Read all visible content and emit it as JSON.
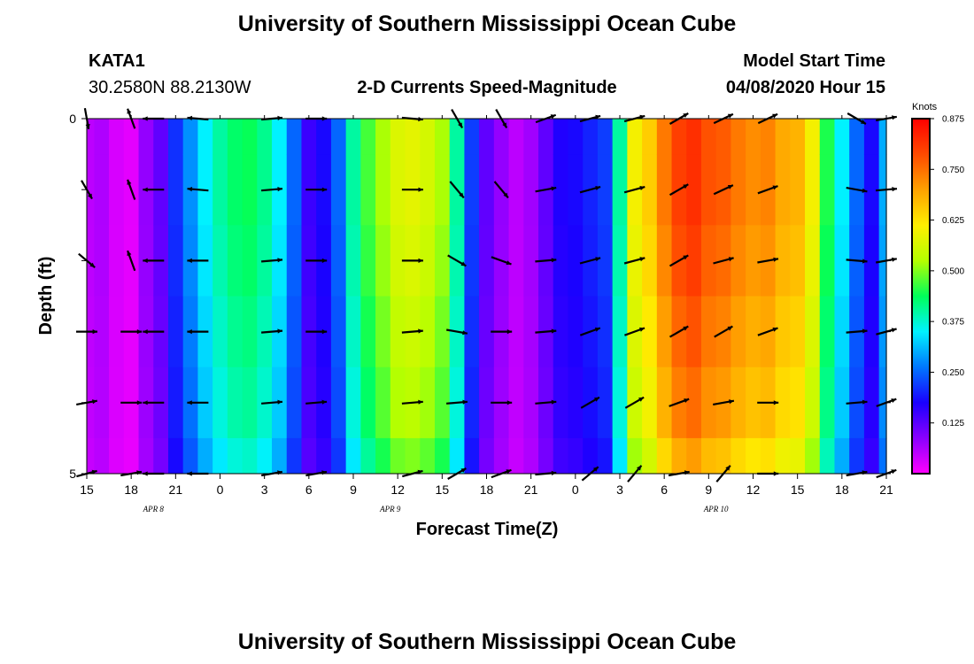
{
  "header": {
    "title": "University of Southern Mississippi Ocean Cube",
    "station": "KATA1",
    "coords": "30.2580N 88.2130W",
    "subtitle": "2-D Currents Speed-Magnitude",
    "model_start_label": "Model Start Time",
    "model_start_value": "04/08/2020 Hour 15"
  },
  "footer": {
    "title": "University of Southern Mississippi Ocean Cube"
  },
  "chart_data": {
    "type": "heatmap",
    "title": "2-D Currents Speed-Magnitude",
    "xlabel": "Forecast Time(Z)",
    "ylabel": "Depth (ft)",
    "x_tick_labels": [
      "15",
      "18",
      "21",
      "0",
      "3",
      "6",
      "9",
      "12",
      "15",
      "18",
      "21",
      "0",
      "3",
      "6",
      "9",
      "12",
      "15",
      "18",
      "21"
    ],
    "day_labels": [
      {
        "text": "APR  8",
        "hour_index": 4.5
      },
      {
        "text": "APR  9",
        "hour_index": 20.5
      },
      {
        "text": "APR  10",
        "hour_index": 42.5
      }
    ],
    "y_tick_labels": [
      "0",
      "5"
    ],
    "ylim": [
      0,
      5
    ],
    "colorbar": {
      "unit": "Knots",
      "ticks": [
        "0.875",
        "0.750",
        "0.625",
        "0.500",
        "0.375",
        "0.250",
        "0.125"
      ],
      "range": [
        0,
        0.875
      ],
      "colors": [
        "#ff00ff",
        "#8a00ff",
        "#1a00ff",
        "#0077ff",
        "#00f2ff",
        "#00ff5a",
        "#b5ff00",
        "#ffee00",
        "#ffa100",
        "#ff4a00",
        "#ff0000"
      ]
    },
    "hours": 55,
    "speed_by_hour": [
      0.05,
      0.06,
      0.03,
      0.02,
      0.08,
      0.12,
      0.21,
      0.28,
      0.35,
      0.4,
      0.43,
      0.44,
      0.41,
      0.35,
      0.25,
      0.15,
      0.18,
      0.25,
      0.4,
      0.47,
      0.52,
      0.57,
      0.58,
      0.56,
      0.52,
      0.4,
      0.22,
      0.12,
      0.08,
      0.05,
      0.07,
      0.12,
      0.17,
      0.18,
      0.2,
      0.22,
      0.4,
      0.6,
      0.65,
      0.74,
      0.8,
      0.82,
      0.78,
      0.77,
      0.74,
      0.72,
      0.73,
      0.69,
      0.68,
      0.6,
      0.45,
      0.35,
      0.25,
      0.18,
      0.3
    ],
    "depth_factors": [
      1.0,
      1.0,
      0.98,
      0.95,
      0.92,
      0.86
    ],
    "depth_offsets": [
      0,
      0,
      0,
      0,
      0,
      0
    ],
    "vectors": [
      {
        "hour": 0,
        "angles": [
          -80,
          -60,
          -40,
          0,
          10,
          15
        ]
      },
      {
        "hour": 3,
        "angles": [
          110,
          110,
          110,
          0,
          0,
          10
        ]
      },
      {
        "hour": 4.5,
        "angles": [
          180,
          180,
          180,
          180,
          180,
          180
        ]
      },
      {
        "hour": 7.5,
        "angles": [
          175,
          175,
          180,
          180,
          180,
          180
        ]
      },
      {
        "hour": 12.5,
        "angles": [
          5,
          5,
          5,
          5,
          5,
          10
        ]
      },
      {
        "hour": 15.5,
        "angles": [
          0,
          0,
          0,
          0,
          5,
          10
        ]
      },
      {
        "hour": 22,
        "angles": [
          -5,
          0,
          0,
          5,
          5,
          15
        ]
      },
      {
        "hour": 25,
        "angles": [
          -60,
          -50,
          -30,
          -10,
          5,
          30
        ]
      },
      {
        "hour": 28,
        "angles": [
          -60,
          -50,
          -20,
          0,
          0,
          20
        ]
      },
      {
        "hour": 31,
        "angles": [
          20,
          10,
          5,
          5,
          5,
          5
        ]
      },
      {
        "hour": 34,
        "angles": [
          15,
          15,
          15,
          20,
          30,
          40
        ]
      },
      {
        "hour": 37,
        "angles": [
          15,
          15,
          15,
          20,
          30,
          50
        ]
      },
      {
        "hour": 40,
        "angles": [
          30,
          30,
          30,
          30,
          20,
          10
        ]
      },
      {
        "hour": 43,
        "angles": [
          25,
          25,
          15,
          30,
          10,
          50
        ]
      },
      {
        "hour": 46,
        "angles": [
          25,
          20,
          10,
          20,
          0,
          0
        ]
      },
      {
        "hour": 52,
        "angles": [
          -30,
          -10,
          -5,
          5,
          5,
          10
        ]
      },
      {
        "hour": 54,
        "angles": [
          10,
          5,
          10,
          15,
          20,
          20
        ]
      }
    ]
  }
}
